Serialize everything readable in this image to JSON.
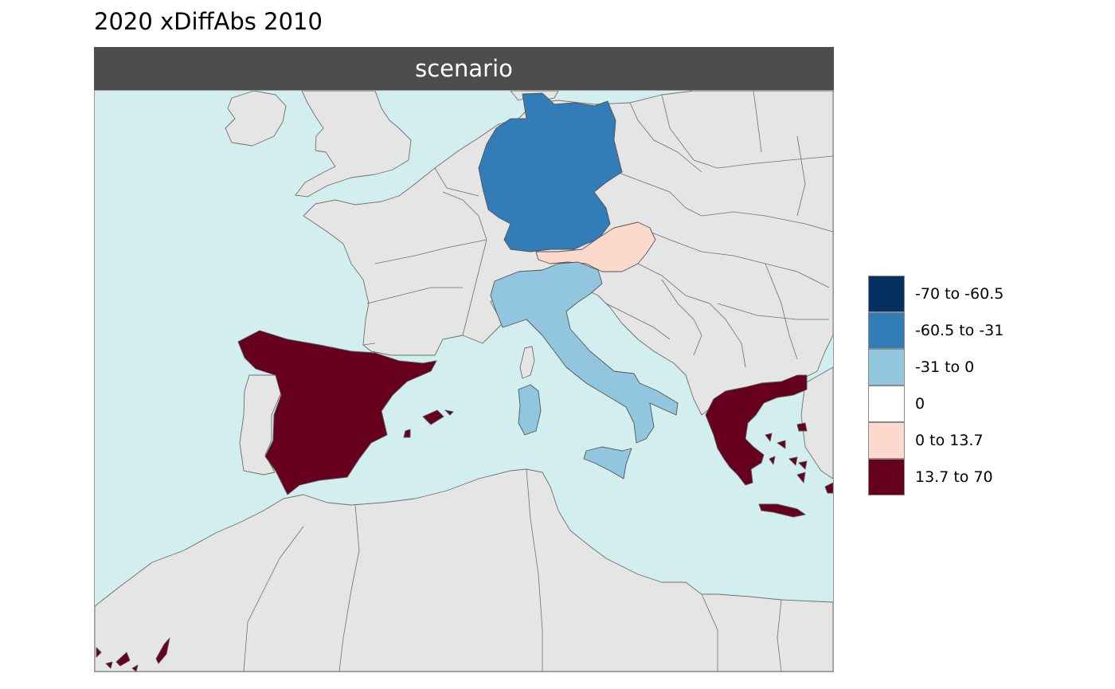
{
  "title": "2020 xDiffAbs 2010",
  "facet": {
    "label": "scenario"
  },
  "legend": {
    "items": [
      {
        "label": "-70 to -60.5",
        "color": "#053061"
      },
      {
        "label": "-60.5 to -31",
        "color": "#327cb8"
      },
      {
        "label": "-31 to 0",
        "color": "#92c5de"
      },
      {
        "label": "0",
        "color": "#ffffff"
      },
      {
        "label": "0 to 13.7",
        "color": "#fbd9cc"
      },
      {
        "label": "13.7 to 70",
        "color": "#67001f"
      }
    ]
  },
  "map": {
    "sea_color": "#d2eeee",
    "land_color": "#e5e5e5",
    "highlighted_regions": [
      {
        "name": "Germany",
        "color": "#327cb8"
      },
      {
        "name": "Austria",
        "color": "#fbd9cc"
      },
      {
        "name": "Italy",
        "color": "#92c5de"
      },
      {
        "name": "Spain",
        "color": "#67001f"
      },
      {
        "name": "Greece",
        "color": "#67001f"
      }
    ]
  }
}
